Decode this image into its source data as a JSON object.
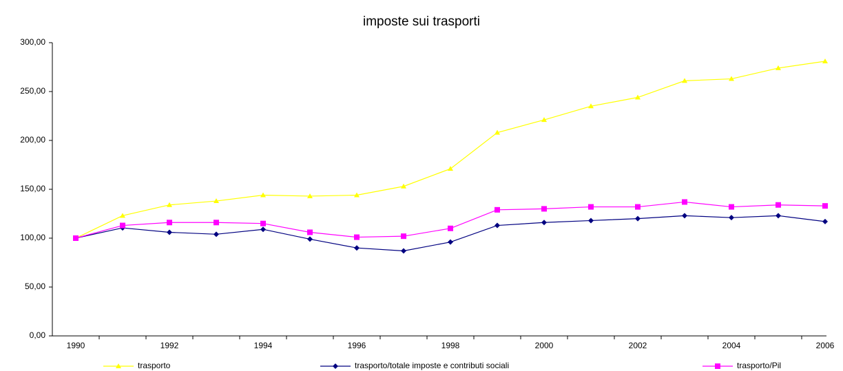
{
  "chart_data": {
    "type": "line",
    "title": "imposte sui trasporti",
    "categories": [
      "1990",
      null,
      "1992",
      null,
      "1994",
      null,
      "1996",
      null,
      "1998",
      null,
      "2000",
      null,
      "2002",
      null,
      "2004",
      null,
      "2006"
    ],
    "series": [
      {
        "name": "trasporto",
        "color": "#ffff00",
        "marker": "triangle",
        "values": [
          100,
          123,
          134,
          138,
          144,
          143,
          144,
          153,
          171,
          208,
          221,
          235,
          244,
          261,
          263,
          274,
          281
        ]
      },
      {
        "name": "trasporto/totale imposte e contributi sociali",
        "color": "#000080",
        "marker": "diamond",
        "values": [
          100,
          110.5,
          106,
          104,
          109,
          99,
          90,
          87,
          96,
          113,
          116,
          118,
          120,
          123,
          121,
          123,
          117
        ]
      },
      {
        "name": "trasporto/Pil",
        "color": "#ff00ff",
        "marker": "square",
        "values": [
          100,
          113,
          116,
          116,
          115,
          106,
          101,
          102,
          110,
          129,
          130,
          132,
          132,
          137,
          132,
          134,
          133
        ]
      }
    ],
    "ylim": [
      0,
      300
    ],
    "yticks": [
      {
        "value": 0,
        "label": "0,00"
      },
      {
        "value": 50,
        "label": "50,00"
      },
      {
        "value": 100,
        "label": "100,00"
      },
      {
        "value": 150,
        "label": "150,00"
      },
      {
        "value": 200,
        "label": "200,00"
      },
      {
        "value": 250,
        "label": "250,00"
      },
      {
        "value": 300,
        "label": "300,00"
      }
    ],
    "grid": false,
    "legend": "bottom"
  }
}
